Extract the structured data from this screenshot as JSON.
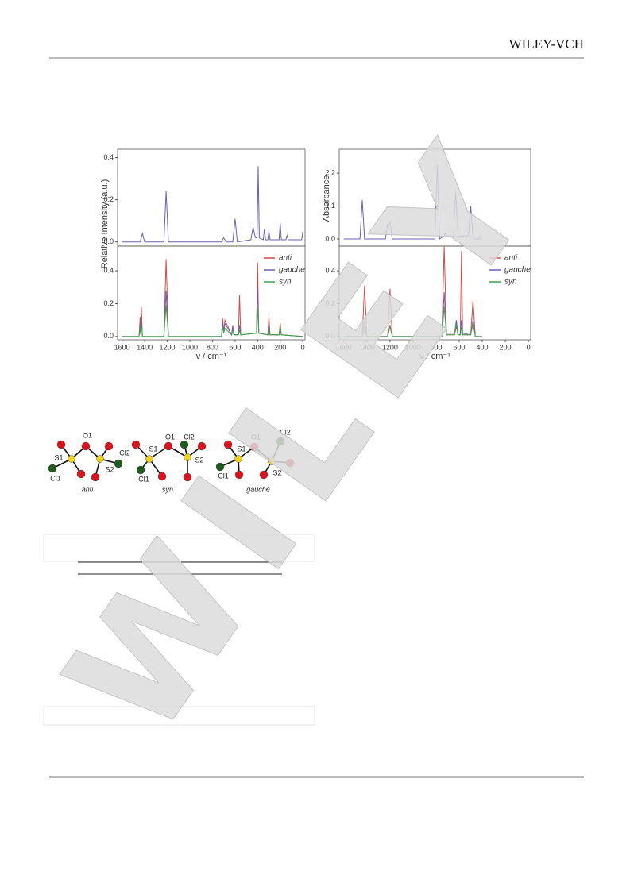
{
  "header": {
    "logo": "WILEY-VCH"
  },
  "watermark": "WILEY",
  "chart_data": [
    {
      "type": "line",
      "y_label": "Relative Intensity (a.u.)",
      "color": "#6a5fb5",
      "xlim": [
        1640,
        -20
      ],
      "ylim": [
        -0.02,
        0.44
      ],
      "yticks": [
        {
          "value": 0,
          "label": "0.0"
        },
        0.2,
        0.4
      ],
      "x": [
        1600,
        1440,
        1420,
        1400,
        1230,
        1210,
        1190,
        720,
        700,
        680,
        620,
        600,
        580,
        460,
        440,
        420,
        405,
        395,
        385,
        350,
        340,
        330,
        310,
        300,
        290,
        210,
        200,
        190,
        150,
        140,
        130,
        10,
        0
      ],
      "values": [
        0,
        0,
        0.04,
        0,
        0,
        0.24,
        0,
        0,
        0.02,
        0,
        0,
        0.11,
        0,
        0.01,
        0.07,
        0.02,
        0.02,
        0.36,
        0.02,
        0.01,
        0.06,
        0.01,
        0.01,
        0.05,
        0.01,
        0.01,
        0.09,
        0.01,
        0.01,
        0.03,
        0.01,
        0.01,
        0.05
      ]
    },
    {
      "type": "line",
      "x_label": "ν / cm⁻¹",
      "xlim": [
        1640,
        -20
      ],
      "xticks": [
        1600,
        1400,
        1200,
        1000,
        800,
        600,
        400,
        200,
        0
      ],
      "ylim": [
        -0.02,
        0.55
      ],
      "yticks": [
        {
          "value": 0,
          "label": "0.0"
        },
        0.2,
        0.4
      ],
      "x": [
        1600,
        1450,
        1440,
        1435,
        1430,
        1420,
        1230,
        1210,
        1190,
        720,
        710,
        700,
        690,
        630,
        620,
        610,
        570,
        560,
        550,
        410,
        400,
        390,
        310,
        300,
        290,
        210,
        200,
        190,
        0
      ],
      "series": [
        {
          "name": "anti",
          "color": "#d24b45",
          "values": [
            0,
            0,
            0.12,
            0.02,
            0.18,
            0,
            0,
            0.47,
            0,
            0,
            0.11,
            0.03,
            0.1,
            0.01,
            0.07,
            0.01,
            0.01,
            0.25,
            0.01,
            0.02,
            0.45,
            0.02,
            0.01,
            0.12,
            0.01,
            0.01,
            0.08,
            0.01,
            0
          ]
        },
        {
          "name": "gauche",
          "color": "#6a5fb5",
          "values": [
            0,
            0,
            0.07,
            0.02,
            0.11,
            0,
            0,
            0.28,
            0,
            0,
            0.09,
            0.03,
            0.08,
            0.01,
            0.06,
            0.01,
            0.01,
            0.07,
            0.01,
            0.02,
            0.3,
            0.02,
            0.01,
            0.07,
            0.01,
            0.01,
            0.04,
            0.01,
            0
          ]
        },
        {
          "name": "syn",
          "color": "#3fa34a",
          "values": [
            0,
            0,
            0.05,
            0.01,
            0.08,
            0,
            0,
            0.19,
            0,
            0,
            0.06,
            0.02,
            0.05,
            0.01,
            0.04,
            0.01,
            0.01,
            0.04,
            0.01,
            0.02,
            0.18,
            0.02,
            0.01,
            0.05,
            0.01,
            0.01,
            0.06,
            0.01,
            0
          ]
        }
      ]
    },
    {
      "type": "line",
      "y_label": "Absorbance",
      "color": "#6a5fb5",
      "xlim": [
        1640,
        -20
      ],
      "ylim": [
        -0.24,
        3.0
      ],
      "yticks": [
        {
          "value": 0,
          "label": "0.0"
        },
        1.1,
        2.2
      ],
      "x": [
        1600,
        1460,
        1440,
        1420,
        1240,
        1220,
        1210,
        1200,
        1180,
        810,
        790,
        770,
        730,
        720,
        710,
        650,
        630,
        610,
        520,
        500,
        480,
        430,
        420,
        410,
        400
      ],
      "values": [
        0,
        0,
        1.3,
        0,
        0,
        0.5,
        0.4,
        0.6,
        0,
        0,
        2.5,
        0,
        0.1,
        0.2,
        0.1,
        0.1,
        1.6,
        0.1,
        0.1,
        1.1,
        0,
        0,
        0.1,
        0,
        0
      ]
    },
    {
      "type": "line",
      "x_label": "ν / cm⁻¹",
      "xlim": [
        1640,
        -20
      ],
      "xticks": [
        1600,
        1400,
        1200,
        1000,
        800,
        600,
        400,
        200,
        0
      ],
      "ylim": [
        -0.02,
        0.55
      ],
      "yticks": [
        {
          "value": 0,
          "label": "0.0"
        },
        0.2,
        0.4
      ],
      "x": [
        1600,
        1440,
        1420,
        1400,
        1220,
        1200,
        1180,
        750,
        730,
        710,
        640,
        625,
        610,
        590,
        580,
        570,
        500,
        480,
        460,
        400
      ],
      "series": [
        {
          "name": "anti",
          "color": "#d24b45",
          "values": [
            0,
            0,
            0.31,
            0,
            0,
            0.29,
            0,
            0,
            0.55,
            0.01,
            0.01,
            0.06,
            0.01,
            0.01,
            0.52,
            0.01,
            0.01,
            0.22,
            0,
            0
          ]
        },
        {
          "name": "gauche",
          "color": "#6a5fb5",
          "values": [
            0,
            0,
            0.1,
            0,
            0,
            0.07,
            0,
            0,
            0.27,
            0.02,
            0.02,
            0.1,
            0.02,
            0.02,
            0.1,
            0.02,
            0.01,
            0.1,
            0,
            0
          ]
        },
        {
          "name": "syn",
          "color": "#3fa34a",
          "values": [
            0,
            0,
            0.06,
            0,
            0,
            0.06,
            0,
            0,
            0.18,
            0.01,
            0.01,
            0.08,
            0.01,
            0.01,
            0.06,
            0.01,
            0.01,
            0.08,
            0,
            0
          ]
        }
      ]
    }
  ],
  "molecules": [
    {
      "name": "anti",
      "labels": [
        "O1",
        "S1",
        "S2",
        "Cl1",
        "Cl2"
      ]
    },
    {
      "name": "syn",
      "labels": [
        "O1",
        "S1",
        "S2",
        "Cl1",
        "Cl2"
      ]
    },
    {
      "name": "gauche",
      "labels": [
        "O1",
        "S1",
        "S2",
        "Cl1",
        "Cl2"
      ]
    }
  ]
}
